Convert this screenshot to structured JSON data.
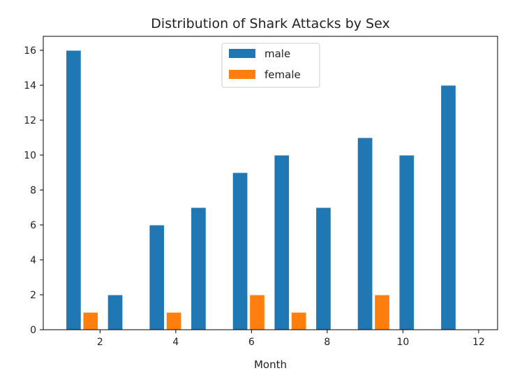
{
  "chart_data": {
    "type": "bar",
    "title": "Distribution of Shark Attacks by Sex",
    "xlabel": "Month",
    "ylabel": "",
    "xlim": [
      0.5,
      12.5
    ],
    "ylim": [
      0,
      16.8
    ],
    "xticks": [
      2,
      4,
      6,
      8,
      10,
      12
    ],
    "yticks": [
      0,
      2,
      4,
      6,
      8,
      10,
      12,
      14,
      16
    ],
    "legend_position": "top-center",
    "series": [
      {
        "name": "male",
        "color": "#1f77b4",
        "x": [
          1.3,
          2.4,
          3.5,
          4.6,
          5.7,
          6.8,
          7.9,
          9.0,
          10.1,
          11.2
        ],
        "values": [
          16,
          2,
          6,
          7,
          9,
          10,
          7,
          11,
          10,
          14
        ]
      },
      {
        "name": "female",
        "color": "#ff7f0e",
        "x": [
          1.75,
          2.85,
          3.95,
          5.05,
          6.15,
          7.25,
          8.35,
          9.45,
          10.55,
          11.65
        ],
        "values": [
          1,
          0,
          1,
          0,
          2,
          1,
          0,
          2,
          0,
          0
        ]
      }
    ]
  }
}
